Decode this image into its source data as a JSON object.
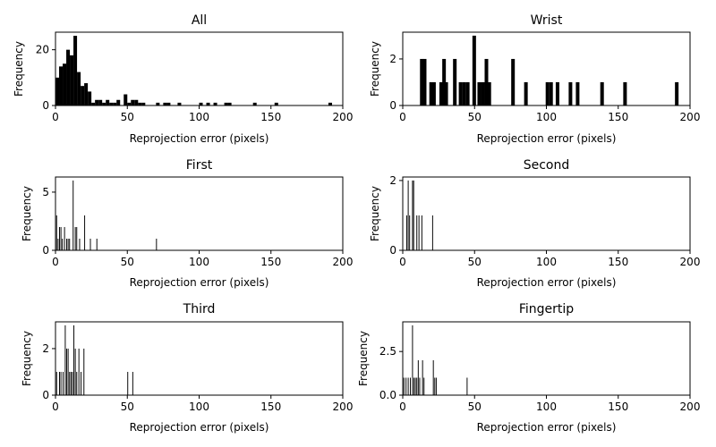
{
  "figure": {
    "background": "#ffffff",
    "bar_color": "#000000",
    "axis_color": "#000000"
  },
  "chart_data": [
    {
      "type": "bar",
      "title": "All",
      "xlabel": "Reprojection error (pixels)",
      "ylabel": "Frequency",
      "xlim": [
        0,
        200
      ],
      "ylim": [
        0,
        26.3
      ],
      "xticks": [
        "0",
        "50",
        "100",
        "150",
        "200"
      ],
      "yticks": [
        {
          "value": 0,
          "label": "0"
        },
        {
          "value": 20,
          "label": "20"
        }
      ],
      "grid": false,
      "bin_width": 2.5,
      "bins": [
        {
          "x": 0,
          "value": 10
        },
        {
          "x": 2.5,
          "value": 14
        },
        {
          "x": 5,
          "value": 15
        },
        {
          "x": 7.5,
          "value": 20
        },
        {
          "x": 10,
          "value": 18
        },
        {
          "x": 12.5,
          "value": 25
        },
        {
          "x": 15,
          "value": 12
        },
        {
          "x": 17.5,
          "value": 7
        },
        {
          "x": 20,
          "value": 8
        },
        {
          "x": 22.5,
          "value": 5
        },
        {
          "x": 25,
          "value": 1
        },
        {
          "x": 27.5,
          "value": 2
        },
        {
          "x": 30,
          "value": 2
        },
        {
          "x": 32.5,
          "value": 1
        },
        {
          "x": 35,
          "value": 2
        },
        {
          "x": 37.5,
          "value": 1
        },
        {
          "x": 40,
          "value": 1
        },
        {
          "x": 42.5,
          "value": 2
        },
        {
          "x": 47.5,
          "value": 4
        },
        {
          "x": 50,
          "value": 1
        },
        {
          "x": 52.5,
          "value": 2
        },
        {
          "x": 55,
          "value": 2
        },
        {
          "x": 57.5,
          "value": 1
        },
        {
          "x": 60,
          "value": 1
        },
        {
          "x": 70,
          "value": 1
        },
        {
          "x": 75,
          "value": 1
        },
        {
          "x": 77.5,
          "value": 1
        },
        {
          "x": 85,
          "value": 1
        },
        {
          "x": 100,
          "value": 1
        },
        {
          "x": 105,
          "value": 1
        },
        {
          "x": 110,
          "value": 1
        },
        {
          "x": 117.5,
          "value": 1
        },
        {
          "x": 120,
          "value": 1
        },
        {
          "x": 137.5,
          "value": 1
        },
        {
          "x": 152.5,
          "value": 1
        },
        {
          "x": 190,
          "value": 1
        }
      ]
    },
    {
      "type": "bar",
      "title": "Wrist",
      "xlabel": "Reprojection error (pixels)",
      "ylabel": "Frequency",
      "xlim": [
        0,
        200
      ],
      "ylim": [
        0,
        3.15
      ],
      "xticks": [
        "0",
        "50",
        "100",
        "150",
        "200"
      ],
      "yticks": [
        {
          "value": 0,
          "label": "0"
        },
        {
          "value": 2,
          "label": "2"
        }
      ],
      "grid": false,
      "bin_width": 2.5,
      "bins": [
        {
          "x": 12,
          "value": 2
        },
        {
          "x": 14,
          "value": 2
        },
        {
          "x": 18.5,
          "value": 1
        },
        {
          "x": 20.5,
          "value": 1
        },
        {
          "x": 25.5,
          "value": 1
        },
        {
          "x": 27.5,
          "value": 2
        },
        {
          "x": 29,
          "value": 1
        },
        {
          "x": 35,
          "value": 2
        },
        {
          "x": 39,
          "value": 1
        },
        {
          "x": 41.5,
          "value": 1
        },
        {
          "x": 44,
          "value": 1
        },
        {
          "x": 48.5,
          "value": 3
        },
        {
          "x": 52,
          "value": 1
        },
        {
          "x": 54.5,
          "value": 1
        },
        {
          "x": 57,
          "value": 2
        },
        {
          "x": 59,
          "value": 1
        },
        {
          "x": 75.5,
          "value": 2
        },
        {
          "x": 84.5,
          "value": 1
        },
        {
          "x": 99.5,
          "value": 1
        },
        {
          "x": 102,
          "value": 1
        },
        {
          "x": 106.5,
          "value": 1
        },
        {
          "x": 115.5,
          "value": 1
        },
        {
          "x": 120.5,
          "value": 1
        },
        {
          "x": 137.5,
          "value": 1
        },
        {
          "x": 153.5,
          "value": 1
        },
        {
          "x": 189.5,
          "value": 1
        }
      ]
    },
    {
      "type": "bar",
      "title": "First",
      "xlabel": "Reprojection error (pixels)",
      "ylabel": "Frequency",
      "xlim": [
        0,
        200
      ],
      "ylim": [
        0,
        6.3
      ],
      "xticks": [
        "0",
        "50",
        "100",
        "150",
        "200"
      ],
      "yticks": [
        {
          "value": 0,
          "label": "0"
        },
        {
          "value": 5,
          "label": "5"
        }
      ],
      "grid": false,
      "bin_width": 0.6,
      "bins": [
        {
          "x": 0.5,
          "value": 3
        },
        {
          "x": 1.5,
          "value": 1
        },
        {
          "x": 2.5,
          "value": 2
        },
        {
          "x": 3.5,
          "value": 2
        },
        {
          "x": 4.5,
          "value": 1
        },
        {
          "x": 6,
          "value": 2
        },
        {
          "x": 7.5,
          "value": 1
        },
        {
          "x": 8.5,
          "value": 1
        },
        {
          "x": 9.5,
          "value": 1
        },
        {
          "x": 12,
          "value": 6
        },
        {
          "x": 13.5,
          "value": 2
        },
        {
          "x": 14.5,
          "value": 2
        },
        {
          "x": 16.5,
          "value": 1
        },
        {
          "x": 20,
          "value": 3
        },
        {
          "x": 24,
          "value": 1
        },
        {
          "x": 28.5,
          "value": 1
        },
        {
          "x": 70,
          "value": 1
        }
      ]
    },
    {
      "type": "bar",
      "title": "Second",
      "xlabel": "Reprojection error (pixels)",
      "ylabel": "Frequency",
      "xlim": [
        0,
        200
      ],
      "ylim": [
        0,
        2.1
      ],
      "xticks": [
        "0",
        "50",
        "100",
        "150",
        "200"
      ],
      "yticks": [
        {
          "value": 0,
          "label": "0"
        },
        {
          "value": 2,
          "label": "2"
        }
      ],
      "grid": false,
      "bin_width": 0.6,
      "bins": [
        {
          "x": 2.5,
          "value": 1
        },
        {
          "x": 3.5,
          "value": 2
        },
        {
          "x": 4.5,
          "value": 1
        },
        {
          "x": 6.5,
          "value": 2
        },
        {
          "x": 7.3,
          "value": 2
        },
        {
          "x": 9.5,
          "value": 1
        },
        {
          "x": 11,
          "value": 1
        },
        {
          "x": 13,
          "value": 1
        },
        {
          "x": 20.5,
          "value": 1
        }
      ]
    },
    {
      "type": "bar",
      "title": "Third",
      "xlabel": "Reprojection error (pixels)",
      "ylabel": "Frequency",
      "xlim": [
        0,
        200
      ],
      "ylim": [
        0,
        3.15
      ],
      "xticks": [
        "0",
        "50",
        "100",
        "150",
        "200"
      ],
      "yticks": [
        {
          "value": 0,
          "label": "0"
        },
        {
          "value": 2,
          "label": "2"
        }
      ],
      "grid": false,
      "bin_width": 0.6,
      "bins": [
        {
          "x": 0.5,
          "value": 1
        },
        {
          "x": 2.5,
          "value": 1
        },
        {
          "x": 3.5,
          "value": 1
        },
        {
          "x": 5,
          "value": 1
        },
        {
          "x": 6.5,
          "value": 3
        },
        {
          "x": 7.5,
          "value": 2
        },
        {
          "x": 8.5,
          "value": 2
        },
        {
          "x": 9.5,
          "value": 1
        },
        {
          "x": 10.5,
          "value": 1
        },
        {
          "x": 11.5,
          "value": 1
        },
        {
          "x": 12.5,
          "value": 3
        },
        {
          "x": 13.5,
          "value": 2
        },
        {
          "x": 14.5,
          "value": 1
        },
        {
          "x": 16,
          "value": 2
        },
        {
          "x": 17.5,
          "value": 1
        },
        {
          "x": 19.5,
          "value": 2
        },
        {
          "x": 50,
          "value": 1
        },
        {
          "x": 53.5,
          "value": 1
        }
      ]
    },
    {
      "type": "bar",
      "title": "Fingertip",
      "xlabel": "Reprojection error (pixels)",
      "ylabel": "Frequency",
      "xlim": [
        0,
        200
      ],
      "ylim": [
        0,
        4.2
      ],
      "xticks": [
        "0",
        "50",
        "100",
        "150",
        "200"
      ],
      "yticks": [
        {
          "value": 0,
          "label": "0.0"
        },
        {
          "value": 2.5,
          "label": "2.5"
        }
      ],
      "grid": false,
      "bin_width": 0.6,
      "bins": [
        {
          "x": 0.5,
          "value": 1
        },
        {
          "x": 2,
          "value": 1
        },
        {
          "x": 3.5,
          "value": 1
        },
        {
          "x": 5,
          "value": 1
        },
        {
          "x": 6.5,
          "value": 4
        },
        {
          "x": 7.5,
          "value": 1
        },
        {
          "x": 8.5,
          "value": 1
        },
        {
          "x": 9.5,
          "value": 1
        },
        {
          "x": 10.5,
          "value": 2
        },
        {
          "x": 11.5,
          "value": 1
        },
        {
          "x": 13.5,
          "value": 2
        },
        {
          "x": 14.5,
          "value": 1
        },
        {
          "x": 21,
          "value": 2
        },
        {
          "x": 22,
          "value": 1
        },
        {
          "x": 23,
          "value": 1
        },
        {
          "x": 44.5,
          "value": 1
        }
      ]
    }
  ]
}
